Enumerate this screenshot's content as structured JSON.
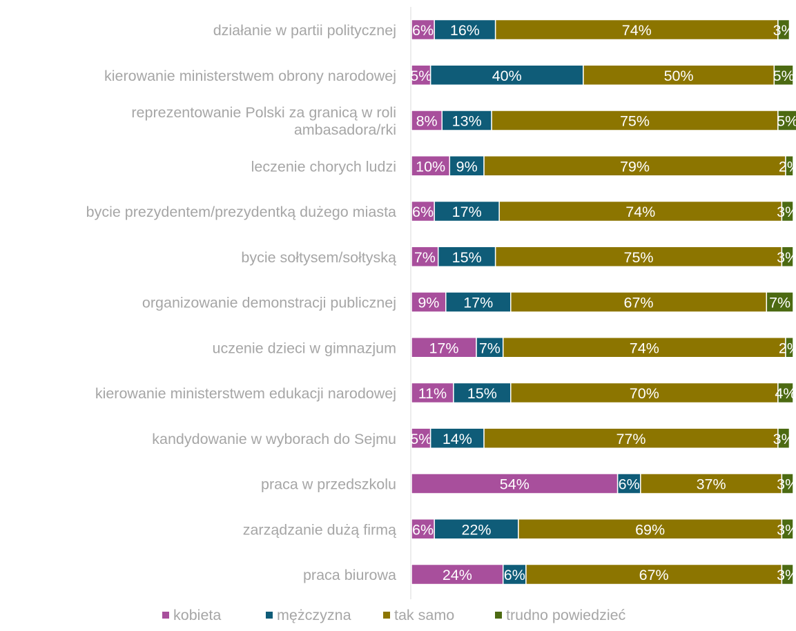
{
  "chart_data": {
    "type": "bar",
    "orientation": "horizontal",
    "stacked": true,
    "percent_stacked": true,
    "categories": [
      [
        "działanie w partii politycznej"
      ],
      [
        "kierowanie ministerstwem obrony narodowej"
      ],
      [
        "reprezentowanie Polski za granicą w roli",
        "ambasadora/rki"
      ],
      [
        "leczenie chorych ludzi"
      ],
      [
        "bycie prezydentem/prezydentką dużego miasta"
      ],
      [
        "bycie sołtysem/sołtyską"
      ],
      [
        "organizowanie demonstracji publicznej"
      ],
      [
        "uczenie dzieci w gimnazjum"
      ],
      [
        "kierowanie ministerstwem edukacji narodowej"
      ],
      [
        "kandydowanie w wyborach do Sejmu"
      ],
      [
        "praca w przedszkolu"
      ],
      [
        "zarządzanie dużą firmą"
      ],
      [
        "praca biurowa"
      ]
    ],
    "series": [
      {
        "name": "kobieta",
        "color": "#A84F9C",
        "values": [
          6,
          5,
          8,
          10,
          6,
          7,
          9,
          17,
          11,
          5,
          54,
          6,
          24
        ],
        "labels": [
          "6%",
          "5%",
          "8%",
          "10%",
          "6%",
          "7%",
          "9%",
          "17%",
          "11%",
          "5%",
          "54%",
          "6%",
          "24%"
        ]
      },
      {
        "name": "mężczyzna",
        "color": "#0F5C78",
        "values": [
          16,
          40,
          13,
          9,
          17,
          15,
          17,
          7,
          15,
          14,
          6,
          22,
          6
        ],
        "labels": [
          "16%",
          "40%",
          "13%",
          "9%",
          "17%",
          "15%",
          "17%",
          "7%",
          "15%",
          "14%",
          "6%",
          "22%",
          "6%"
        ]
      },
      {
        "name": "tak samo",
        "color": "#8C7500",
        "values": [
          74,
          50,
          75,
          79,
          74,
          75,
          67,
          74,
          70,
          77,
          37,
          69,
          67
        ],
        "labels": [
          "74%",
          "50%",
          "75%",
          "79%",
          "74%",
          "75%",
          "67%",
          "74%",
          "70%",
          "77%",
          "37%",
          "69%",
          "67%"
        ]
      },
      {
        "name": "trudno powiedzieć",
        "color": "#4C6A12",
        "values": [
          3,
          5,
          5,
          2,
          3,
          3,
          7,
          2,
          4,
          3,
          3,
          3,
          3
        ],
        "labels": [
          "3%",
          "5%",
          "5%",
          "2%",
          "3%",
          "3%",
          "7%",
          "2%",
          "4%",
          "3%",
          "3%",
          "3%",
          "3%"
        ]
      }
    ],
    "xlim": [
      0,
      100
    ],
    "grid": false,
    "legend_position": "bottom"
  }
}
